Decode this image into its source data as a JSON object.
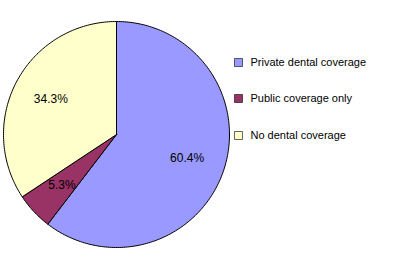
{
  "chart_data": {
    "type": "pie",
    "categories": [
      "Private dental coverage",
      "Public coverage only",
      "No dental coverage"
    ],
    "values": [
      60.4,
      5.3,
      34.3
    ],
    "value_labels": [
      "60.4%",
      "5.3%",
      "34.3%"
    ],
    "colors": [
      "#9999ff",
      "#993366",
      "#ffffcc"
    ],
    "data_labels": true,
    "legend": "right"
  }
}
